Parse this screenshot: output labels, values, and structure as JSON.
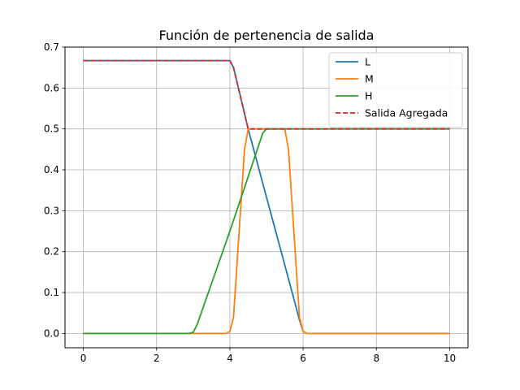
{
  "chart_data": {
    "type": "line",
    "title": "Función de pertenencia de salida",
    "xlabel": "",
    "ylabel": "",
    "xlim": [
      -0.5,
      10.5
    ],
    "ylim": [
      -0.035,
      0.7
    ],
    "xticks": [
      0,
      2,
      4,
      6,
      8,
      10
    ],
    "yticks": [
      0.0,
      0.1,
      0.2,
      0.3,
      0.4,
      0.5,
      0.6,
      0.7
    ],
    "xtick_labels": [
      "0",
      "2",
      "4",
      "6",
      "8",
      "10"
    ],
    "ytick_labels": [
      "0.0",
      "0.1",
      "0.2",
      "0.3",
      "0.4",
      "0.5",
      "0.6",
      "0.7"
    ],
    "grid": true,
    "legend_position": "top-right",
    "series": [
      {
        "name": "L",
        "color": "#1f77b4",
        "style": "solid",
        "x": [
          0,
          3.9,
          4.0,
          4.1,
          4.5,
          5.0,
          5.5,
          5.9,
          6.0,
          6.1,
          10
        ],
        "y": [
          0.667,
          0.667,
          0.667,
          0.65,
          0.5,
          0.333,
          0.167,
          0.033,
          0.005,
          0,
          0
        ]
      },
      {
        "name": "M",
        "color": "#ff7f0e",
        "style": "solid",
        "x": [
          0,
          3.9,
          4.0,
          4.1,
          4.4,
          4.5,
          5.5,
          5.6,
          5.9,
          6.0,
          6.1,
          10
        ],
        "y": [
          0,
          0,
          0.005,
          0.04,
          0.45,
          0.5,
          0.5,
          0.45,
          0.04,
          0.005,
          0,
          0
        ]
      },
      {
        "name": "H",
        "color": "#2ca02c",
        "style": "solid",
        "x": [
          0,
          2.9,
          3.0,
          3.1,
          4.0,
          4.9,
          5.0,
          10
        ],
        "y": [
          0,
          0,
          0.003,
          0.02,
          0.25,
          0.49,
          0.5,
          0.5
        ]
      },
      {
        "name": "Salida Agregada",
        "color": "#d62728",
        "style": "dashed",
        "x": [
          0,
          4.0,
          4.1,
          4.5,
          10
        ],
        "y": [
          0.667,
          0.667,
          0.65,
          0.5,
          0.5
        ]
      }
    ]
  }
}
